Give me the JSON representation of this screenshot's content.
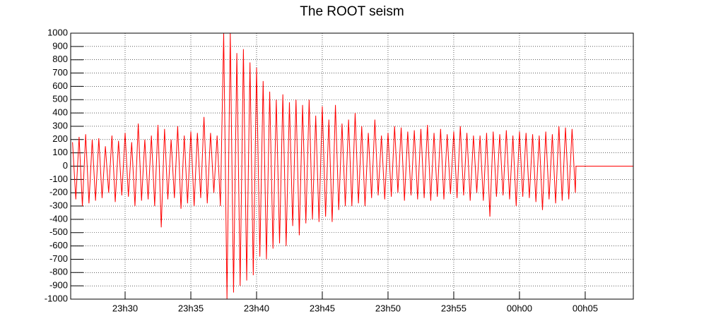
{
  "chart_data": {
    "type": "line",
    "title": "The ROOT seism",
    "color": "#ff0000",
    "grid": true,
    "xlim": [
      25.86,
      68.66
    ],
    "ylim": [
      -1000,
      1000
    ],
    "xticks": [
      {
        "value": 30,
        "label": "23h30"
      },
      {
        "value": 35,
        "label": "23h35"
      },
      {
        "value": 40,
        "label": "23h40"
      },
      {
        "value": 45,
        "label": "23h45"
      },
      {
        "value": 50,
        "label": "23h50"
      },
      {
        "value": 55,
        "label": "23h55"
      },
      {
        "value": 60,
        "label": "00h00"
      },
      {
        "value": 65,
        "label": "00h05"
      }
    ],
    "yticks": [
      -1000,
      -900,
      -800,
      -700,
      -600,
      -500,
      -400,
      -300,
      -200,
      -100,
      0,
      100,
      200,
      300,
      400,
      500,
      600,
      700,
      800,
      900,
      1000
    ],
    "x": [
      26,
      26.25,
      26.5,
      26.75,
      27,
      27.25,
      27.5,
      27.75,
      28,
      28.25,
      28.5,
      28.75,
      29,
      29.25,
      29.5,
      29.75,
      30,
      30.25,
      30.5,
      30.75,
      31,
      31.25,
      31.5,
      31.75,
      32,
      32.25,
      32.5,
      32.75,
      33,
      33.25,
      33.5,
      33.75,
      34,
      34.25,
      34.5,
      34.75,
      35,
      35.25,
      35.5,
      35.75,
      36,
      36.25,
      36.5,
      36.75,
      37,
      37.25,
      37.5,
      37.75,
      38,
      38.25,
      38.5,
      38.75,
      39,
      39.25,
      39.5,
      39.75,
      40,
      40.25,
      40.5,
      40.75,
      41,
      41.25,
      41.5,
      41.75,
      42,
      42.25,
      42.5,
      42.75,
      43,
      43.25,
      43.5,
      43.75,
      44,
      44.25,
      44.5,
      44.75,
      45,
      45.25,
      45.5,
      45.75,
      46,
      46.25,
      46.5,
      46.75,
      47,
      47.25,
      47.5,
      47.75,
      48,
      48.25,
      48.5,
      48.75,
      49,
      49.25,
      49.5,
      49.75,
      50,
      50.25,
      50.5,
      50.75,
      51,
      51.25,
      51.5,
      51.75,
      52,
      52.25,
      52.5,
      52.75,
      53,
      53.25,
      53.5,
      53.75,
      54,
      54.25,
      54.5,
      54.75,
      55,
      55.25,
      55.5,
      55.75,
      56,
      56.25,
      56.5,
      56.75,
      57,
      57.25,
      57.5,
      57.75,
      58,
      58.25,
      58.5,
      58.75,
      59,
      59.25,
      59.5,
      59.75,
      60,
      60.25,
      60.5,
      60.75,
      61,
      61.25,
      61.5,
      61.75,
      62,
      62.25,
      62.5,
      62.75,
      63,
      63.25,
      63.5,
      63.75,
      64,
      64.25,
      64.3,
      68.66
    ],
    "values": [
      180,
      -250,
      220,
      -300,
      240,
      -280,
      200,
      -260,
      210,
      -240,
      150,
      -200,
      230,
      -270,
      190,
      -220,
      250,
      -230,
      180,
      -300,
      320,
      -260,
      200,
      -250,
      230,
      -300,
      310,
      -460,
      280,
      -250,
      200,
      -240,
      300,
      -320,
      230,
      -280,
      260,
      -300,
      250,
      -240,
      370,
      -280,
      250,
      -200,
      230,
      -300,
      1000,
      -1000,
      1000,
      -950,
      850,
      -900,
      880,
      -860,
      780,
      -820,
      740,
      -680,
      640,
      -700,
      560,
      -620,
      500,
      -580,
      540,
      -600,
      480,
      -450,
      500,
      -520,
      460,
      -430,
      500,
      -400,
      380,
      -420,
      450,
      -380,
      350,
      -420,
      460,
      -330,
      320,
      -300,
      350,
      -300,
      400,
      -280,
      300,
      -300,
      250,
      -240,
      350,
      -220,
      230,
      -250,
      250,
      -230,
      300,
      -200,
      290,
      -260,
      260,
      -220,
      270,
      -250,
      280,
      -240,
      310,
      -260,
      250,
      -230,
      280,
      -250,
      240,
      -210,
      260,
      -240,
      300,
      -220,
      250,
      -260,
      230,
      -200,
      230,
      -260,
      250,
      -380,
      260,
      -230,
      240,
      -220,
      270,
      -250,
      230,
      -300,
      260,
      -230,
      250,
      -240,
      240,
      -270,
      230,
      -330,
      260,
      -250,
      240,
      -280,
      300,
      -260,
      290,
      -250,
      280,
      -200,
      0,
      0
    ]
  }
}
